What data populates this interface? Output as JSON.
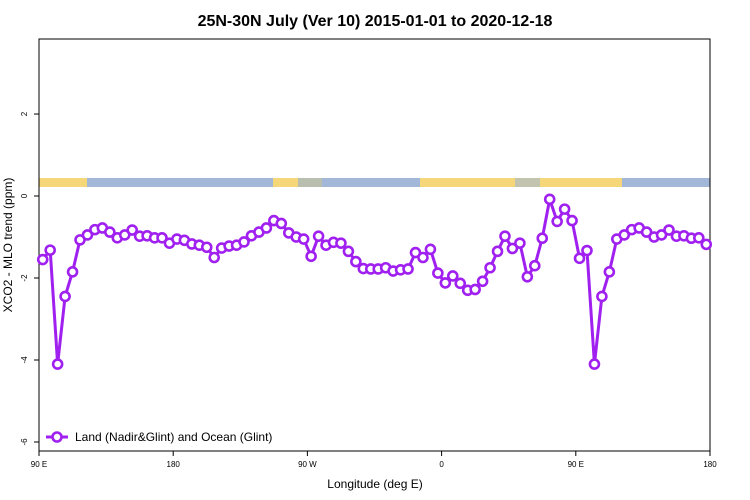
{
  "chart_data": {
    "type": "line",
    "title": "25N-30N July (Ver 10)   2015-01-01 to 2020-12-18",
    "x_label": "Longitude (deg E)",
    "y_label": "XCO2 - MLO trend (ppm)",
    "x": [
      92.5,
      97.5,
      102.5,
      107.5,
      112.5,
      117.5,
      122.5,
      127.5,
      132.5,
      137.5,
      142.5,
      147.5,
      152.5,
      157.5,
      162.5,
      167.5,
      172.5,
      177.5,
      182.5,
      187.5,
      192.5,
      197.5,
      202.5,
      207.5,
      212.5,
      217.5,
      222.5,
      227.5,
      232.5,
      237.5,
      242.5,
      247.5,
      252.5,
      257.5,
      262.5,
      267.5,
      272.5,
      277.5,
      282.5,
      287.5,
      292.5,
      297.5,
      302.5,
      307.5,
      312.5,
      317.5,
      322.5,
      327.5,
      332.5,
      337.5,
      342.5,
      347.5,
      352.5,
      357.5,
      362.5,
      367.5,
      372.5,
      377.5,
      382.5,
      387.5,
      392.5,
      397.5,
      402.5,
      407.5,
      412.5,
      417.5,
      422.5,
      427.5,
      432.5,
      437.5,
      442.5,
      447.5,
      452.5,
      457.5,
      462.5,
      467.5,
      472.5,
      477.5,
      482.5,
      487.5,
      492.5,
      497.5,
      502.5,
      507.5,
      512.5,
      517.5,
      522.5,
      527.5,
      532.5,
      537.5
    ],
    "series": [
      {
        "name": "Land (Nadir&Glint) and Ocean (Glint)",
        "color": "#a020f0",
        "values": [
          -1.55,
          -1.32,
          -4.1,
          -2.45,
          -1.85,
          -1.07,
          -0.95,
          -0.82,
          -0.78,
          -0.88,
          -1.02,
          -0.95,
          -0.83,
          -0.98,
          -0.97,
          -1.02,
          -1.02,
          -1.15,
          -1.05,
          -1.08,
          -1.17,
          -1.2,
          -1.25,
          -1.5,
          -1.27,
          -1.22,
          -1.2,
          -1.12,
          -0.97,
          -0.88,
          -0.78,
          -0.6,
          -0.67,
          -0.9,
          -1.0,
          -1.05,
          -1.47,
          -0.98,
          -1.2,
          -1.13,
          -1.15,
          -1.35,
          -1.6,
          -1.77,
          -1.78,
          -1.78,
          -1.75,
          -1.83,
          -1.8,
          -1.78,
          -1.38,
          -1.5,
          -1.3,
          -1.88,
          -2.12,
          -1.95,
          -2.13,
          -2.3,
          -2.28,
          -2.08,
          -1.75,
          -1.35,
          -0.98,
          -1.28,
          -1.15,
          -1.97,
          -1.7,
          -1.03,
          -0.08,
          -0.62,
          -0.32,
          -0.6,
          -1.52,
          -1.33,
          -4.1,
          -2.45,
          -1.85,
          -1.05,
          -0.95,
          -0.82,
          -0.78,
          -0.88,
          -1.0,
          -0.95,
          -0.83,
          -0.98,
          -0.97,
          -1.03,
          -1.02,
          -1.18
        ]
      }
    ],
    "xlim": [
      90,
      540
    ],
    "xticks": [
      {
        "value": 90,
        "label": "90 E"
      },
      180,
      {
        "value": 270,
        "label": "90 W"
      },
      {
        "value": 360,
        "label": "0"
      },
      {
        "value": 450,
        "label": "90 E"
      },
      {
        "value": 540,
        "label": "180"
      }
    ],
    "ylim": [
      -6.22,
      3.83
    ],
    "yticks": [
      -6,
      -4,
      -2,
      0,
      2
    ],
    "legend": "bottom-left"
  }
}
